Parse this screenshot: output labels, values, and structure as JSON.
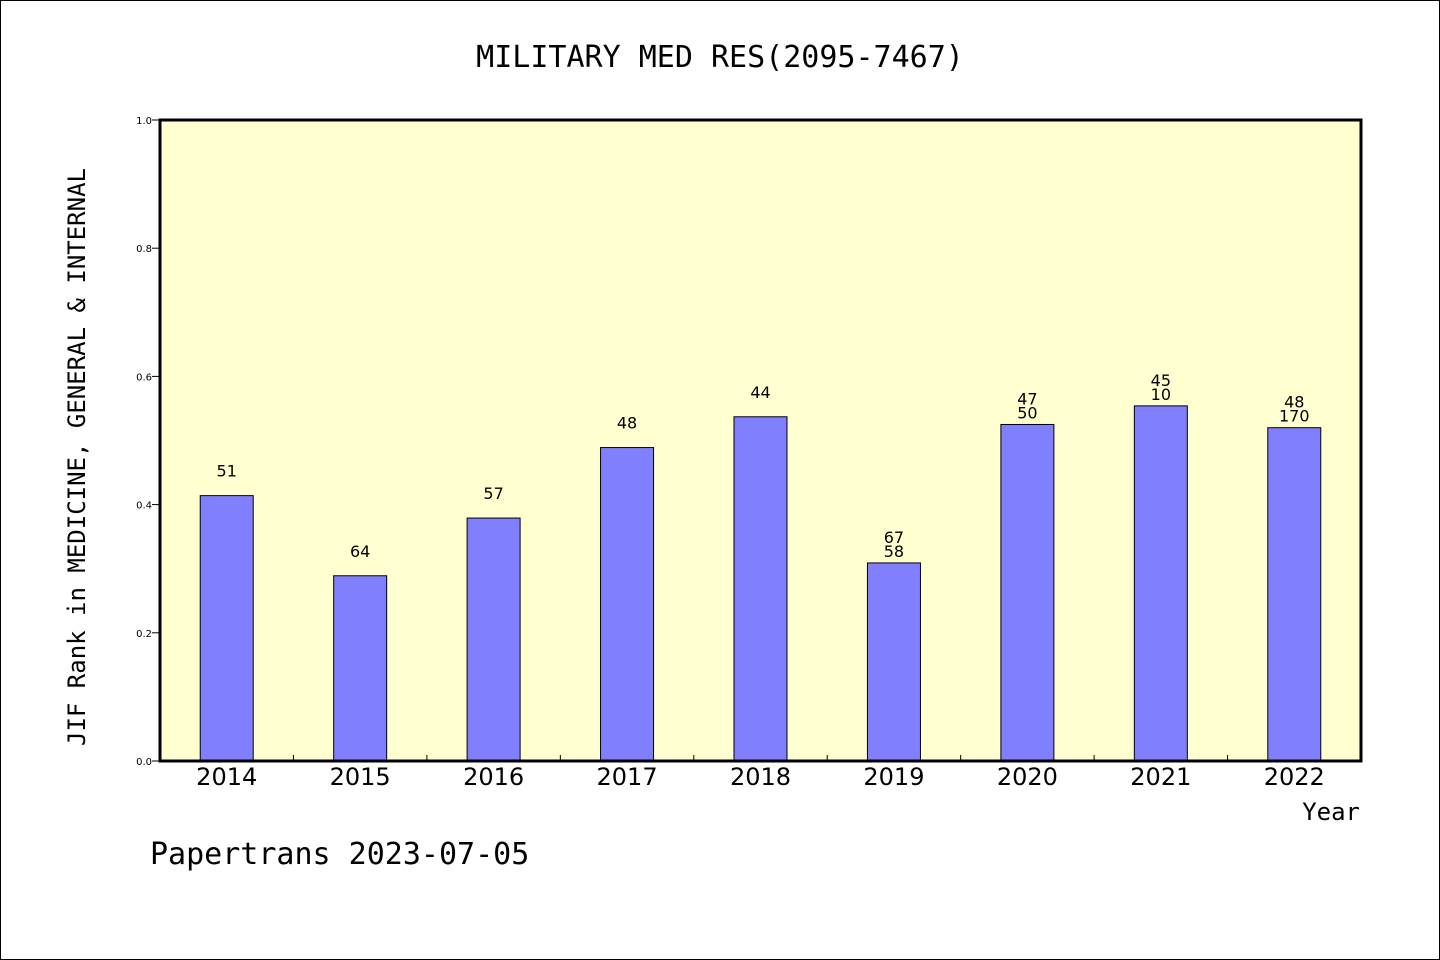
{
  "chart_data": {
    "type": "bar",
    "title": "MILITARY MED RES(2095-7467)",
    "xlabel": "Year",
    "ylabel": "JIF Rank in MEDICINE, GENERAL & INTERNAL",
    "ylim": [
      0.0,
      1.0
    ],
    "yticks": [
      "0.0",
      "0.2",
      "0.4",
      "0.6",
      "0.8",
      "1.0"
    ],
    "categories": [
      "2014",
      "2015",
      "2016",
      "2017",
      "2018",
      "2019",
      "2020",
      "2021",
      "2022"
    ],
    "values": [
      0.414,
      0.289,
      0.379,
      0.489,
      0.537,
      0.309,
      0.525,
      0.554,
      0.52
    ],
    "labels": [
      [
        "51"
      ],
      [
        "64"
      ],
      [
        "57"
      ],
      [
        "48"
      ],
      [
        "44"
      ],
      [
        "67",
        "58"
      ],
      [
        "47",
        "50"
      ],
      [
        "45",
        "10"
      ],
      [
        "48",
        "170"
      ]
    ],
    "bar_color": "#8080ff",
    "plot_background": "#ffffd0",
    "grid": false
  },
  "footer": "Papertrans 2023-07-05"
}
